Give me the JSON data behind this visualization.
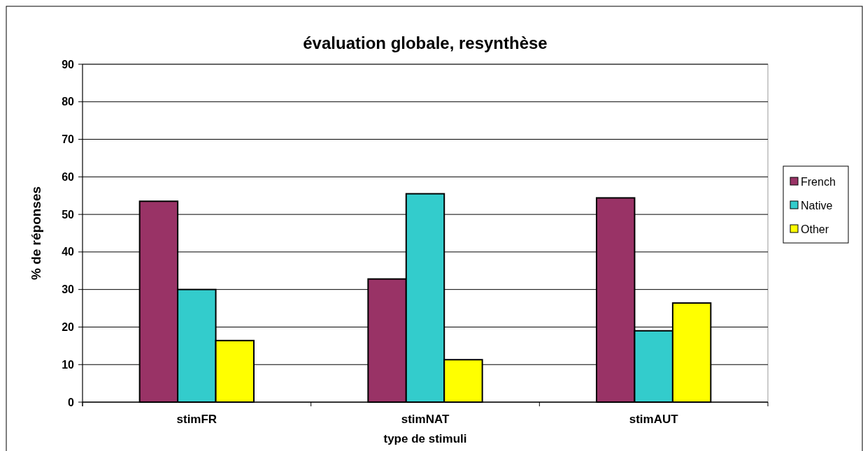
{
  "chart_data": {
    "type": "bar",
    "title": "évaluation globale, resynthèse",
    "xlabel": "type de stimuli",
    "ylabel": "% de réponses",
    "categories": [
      "stimFR",
      "stimNAT",
      "stimAUT"
    ],
    "series": [
      {
        "name": "French",
        "color": "#993366",
        "values": [
          53.5,
          32.8,
          54.4
        ]
      },
      {
        "name": "Native",
        "color": "#33cccc",
        "values": [
          30.0,
          55.5,
          19.0
        ]
      },
      {
        "name": "Other",
        "color": "#ffff00",
        "values": [
          16.4,
          11.3,
          26.4
        ]
      }
    ],
    "ylim": [
      0,
      90
    ],
    "yticks": [
      0,
      10,
      20,
      30,
      40,
      50,
      60,
      70,
      80,
      90
    ],
    "grid": "y",
    "legend": "right"
  }
}
